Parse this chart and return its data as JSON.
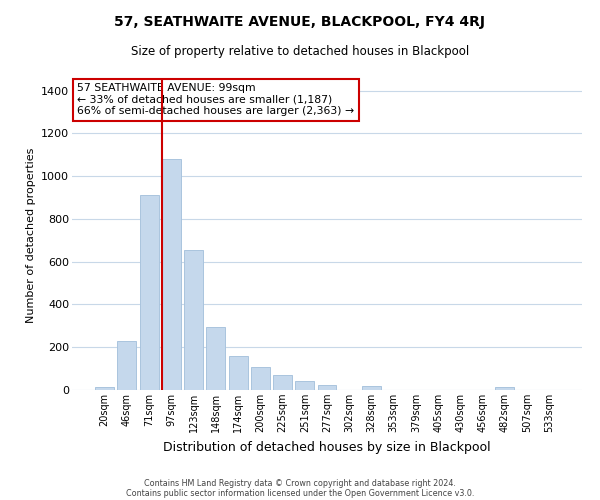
{
  "title": "57, SEATHWAITE AVENUE, BLACKPOOL, FY4 4RJ",
  "subtitle": "Size of property relative to detached houses in Blackpool",
  "xlabel": "Distribution of detached houses by size in Blackpool",
  "ylabel": "Number of detached properties",
  "bar_labels": [
    "20sqm",
    "46sqm",
    "71sqm",
    "97sqm",
    "123sqm",
    "148sqm",
    "174sqm",
    "200sqm",
    "225sqm",
    "251sqm",
    "277sqm",
    "302sqm",
    "328sqm",
    "353sqm",
    "379sqm",
    "405sqm",
    "430sqm",
    "456sqm",
    "482sqm",
    "507sqm",
    "533sqm"
  ],
  "bar_values": [
    15,
    228,
    913,
    1080,
    655,
    293,
    158,
    107,
    70,
    40,
    22,
    0,
    18,
    0,
    0,
    0,
    0,
    0,
    12,
    0,
    0
  ],
  "bar_color": "#c5d8ec",
  "bar_edgecolor": "#aac4de",
  "vline_color": "#cc0000",
  "vline_idx": 3,
  "annotation_text": "57 SEATHWAITE AVENUE: 99sqm\n← 33% of detached houses are smaller (1,187)\n66% of semi-detached houses are larger (2,363) →",
  "annotation_box_edgecolor": "#cc0000",
  "ylim": [
    0,
    1450
  ],
  "yticks": [
    0,
    200,
    400,
    600,
    800,
    1000,
    1200,
    1400
  ],
  "footnote1": "Contains HM Land Registry data © Crown copyright and database right 2024.",
  "footnote2": "Contains public sector information licensed under the Open Government Licence v3.0.",
  "background_color": "#ffffff",
  "grid_color": "#c8d8e8"
}
